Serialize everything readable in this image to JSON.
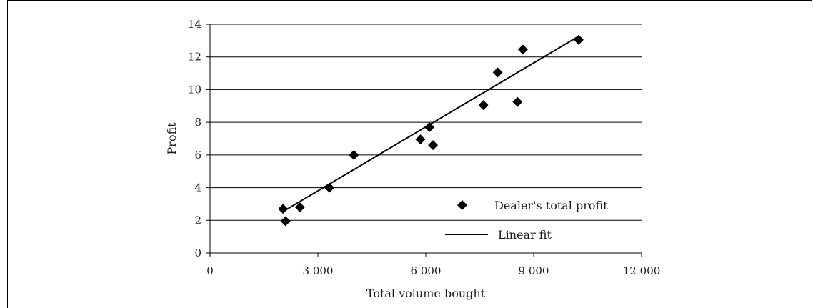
{
  "chart_data": {
    "type": "scatter",
    "xlabel": "Total volume bought",
    "ylabel": "Profit",
    "xlim": [
      0,
      12000
    ],
    "ylim": [
      0,
      14
    ],
    "x_ticks": [
      0,
      3000,
      6000,
      9000,
      12000
    ],
    "x_tick_labels": [
      "0",
      "3 000",
      "6 000",
      "9 000",
      "12 000"
    ],
    "y_ticks": [
      0,
      2,
      4,
      6,
      8,
      10,
      12,
      14
    ],
    "y_tick_labels": [
      "0",
      "2",
      "4",
      "6",
      "8",
      "10",
      "12",
      "14"
    ],
    "grid": "horizontal",
    "legend_position": "bottom-right",
    "series": [
      {
        "name": "Dealer's total profit",
        "kind": "scatter",
        "marker": "diamond",
        "color": "#000000",
        "points": [
          [
            2030,
            2.7
          ],
          [
            2100,
            1.95
          ],
          [
            2500,
            2.8
          ],
          [
            3320,
            4.0
          ],
          [
            4000,
            6.0
          ],
          [
            5850,
            6.95
          ],
          [
            6100,
            7.7
          ],
          [
            6200,
            6.6
          ],
          [
            7600,
            9.05
          ],
          [
            8000,
            11.05
          ],
          [
            8550,
            9.25
          ],
          [
            8700,
            12.45
          ],
          [
            10250,
            13.05
          ]
        ]
      },
      {
        "name": "Linear fit",
        "kind": "line",
        "color": "#000000",
        "points": [
          [
            2000,
            2.5
          ],
          [
            10200,
            13.2
          ]
        ]
      }
    ]
  }
}
